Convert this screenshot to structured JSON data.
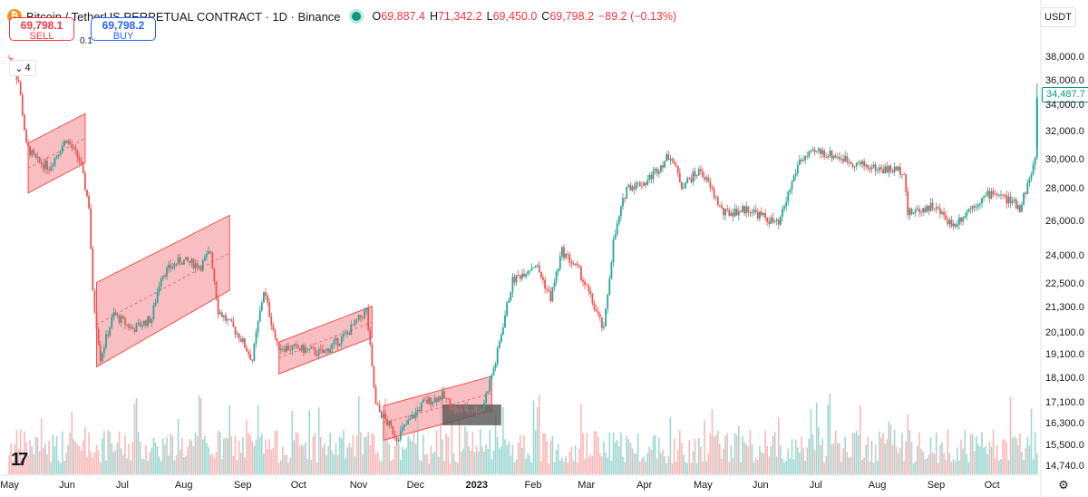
{
  "symbol": {
    "title": "Bitcoin / TetherUS PERPETUAL CONTRACT · 1D · Binance",
    "icon": "bitcoin-icon",
    "icon_glyph": "₿"
  },
  "ohlc": {
    "o_label": "O",
    "o_value": "69,887.4",
    "h_label": "H",
    "h_value": "71,342.2",
    "l_label": "L",
    "l_value": "69,450.0",
    "c_label": "C",
    "c_value": "69,798.2",
    "change": "−89.2 (−0.13%)"
  },
  "trade": {
    "sell_price": "69,798.1",
    "sell_label": "SELL",
    "quantity": "0.1",
    "buy_price": "69,798.2",
    "buy_label": "BUY"
  },
  "indicators": {
    "collapse_count": "4"
  },
  "currency": "USDT",
  "last_price_tag": "34,487.7",
  "colors": {
    "up": "#26a69a",
    "down": "#ef5350",
    "channel_fill": "#f7a8ac",
    "channel_line": "#ef5350",
    "accent_green": "#089981"
  },
  "chart_data": {
    "type": "candlestick",
    "y_axis_ticks": [
      "38,000.0",
      "36,000.0",
      "34,000.0",
      "32,000.0",
      "30,000.0",
      "28,000.0",
      "26,000.0",
      "24,000.0",
      "22,500.0",
      "21,300.0",
      "20,100.0",
      "19,100.0",
      "18,100.0",
      "17,100.0",
      "16,300.0",
      "15,500.0",
      "14,740.0"
    ],
    "x_axis_ticks": [
      "May",
      "Jun",
      "Jul",
      "Aug",
      "Sep",
      "Oct",
      "Nov",
      "Dec",
      "2023",
      "Feb",
      "Mar",
      "Apr",
      "May",
      "Jun",
      "Jul",
      "Aug",
      "Sep",
      "Oct"
    ],
    "scale": "log",
    "price_series": [
      {
        "date": "2022-05-01",
        "close": 38000
      },
      {
        "date": "2022-05-06",
        "close": 36000
      },
      {
        "date": "2022-05-10",
        "close": 31000
      },
      {
        "date": "2022-05-15",
        "close": 30000
      },
      {
        "date": "2022-05-22",
        "close": 29500
      },
      {
        "date": "2022-05-31",
        "close": 31500
      },
      {
        "date": "2022-06-07",
        "close": 30000
      },
      {
        "date": "2022-06-12",
        "close": 27000
      },
      {
        "date": "2022-06-14",
        "close": 22000
      },
      {
        "date": "2022-06-18",
        "close": 19000
      },
      {
        "date": "2022-06-25",
        "close": 21000
      },
      {
        "date": "2022-07-05",
        "close": 20300
      },
      {
        "date": "2022-07-15",
        "close": 20800
      },
      {
        "date": "2022-07-20",
        "close": 23000
      },
      {
        "date": "2022-07-30",
        "close": 23800
      },
      {
        "date": "2022-08-10",
        "close": 23500
      },
      {
        "date": "2022-08-15",
        "close": 24300
      },
      {
        "date": "2022-08-19",
        "close": 21200
      },
      {
        "date": "2022-08-30",
        "close": 20000
      },
      {
        "date": "2022-09-06",
        "close": 18900
      },
      {
        "date": "2022-09-12",
        "close": 22200
      },
      {
        "date": "2022-09-19",
        "close": 19500
      },
      {
        "date": "2022-09-30",
        "close": 19400
      },
      {
        "date": "2022-10-13",
        "close": 19200
      },
      {
        "date": "2022-10-25",
        "close": 20000
      },
      {
        "date": "2022-11-05",
        "close": 21200
      },
      {
        "date": "2022-11-08",
        "close": 18500
      },
      {
        "date": "2022-11-10",
        "close": 17000
      },
      {
        "date": "2022-11-21",
        "close": 15800
      },
      {
        "date": "2022-12-05",
        "close": 17100
      },
      {
        "date": "2022-12-15",
        "close": 17400
      },
      {
        "date": "2022-12-22",
        "close": 16800
      },
      {
        "date": "2023-01-05",
        "close": 16900
      },
      {
        "date": "2023-01-12",
        "close": 18800
      },
      {
        "date": "2023-01-21",
        "close": 22700
      },
      {
        "date": "2023-02-02",
        "close": 23600
      },
      {
        "date": "2023-02-10",
        "close": 21800
      },
      {
        "date": "2023-02-16",
        "close": 24300
      },
      {
        "date": "2023-02-25",
        "close": 23200
      },
      {
        "date": "2023-03-10",
        "close": 20200
      },
      {
        "date": "2023-03-15",
        "close": 24800
      },
      {
        "date": "2023-03-22",
        "close": 28200
      },
      {
        "date": "2023-04-01",
        "close": 28500
      },
      {
        "date": "2023-04-14",
        "close": 30400
      },
      {
        "date": "2023-04-20",
        "close": 28300
      },
      {
        "date": "2023-04-30",
        "close": 29300
      },
      {
        "date": "2023-05-12",
        "close": 26500
      },
      {
        "date": "2023-05-25",
        "close": 26800
      },
      {
        "date": "2023-06-10",
        "close": 25800
      },
      {
        "date": "2023-06-21",
        "close": 30000
      },
      {
        "date": "2023-07-01",
        "close": 30600
      },
      {
        "date": "2023-07-10",
        "close": 30300
      },
      {
        "date": "2023-07-20",
        "close": 29800
      },
      {
        "date": "2023-08-01",
        "close": 29400
      },
      {
        "date": "2023-08-15",
        "close": 29300
      },
      {
        "date": "2023-08-17",
        "close": 26500
      },
      {
        "date": "2023-08-30",
        "close": 27000
      },
      {
        "date": "2023-09-10",
        "close": 25800
      },
      {
        "date": "2023-09-20",
        "close": 27000
      },
      {
        "date": "2023-10-01",
        "close": 27900
      },
      {
        "date": "2023-10-15",
        "close": 26900
      },
      {
        "date": "2023-10-20",
        "close": 28700
      },
      {
        "date": "2023-10-23",
        "close": 30000
      },
      {
        "date": "2023-10-24",
        "close": 34487.7
      }
    ],
    "overlays": [
      {
        "type": "parallel-channel",
        "start": "2022-05-11",
        "end": "2022-06-10"
      },
      {
        "type": "parallel-channel",
        "start": "2022-06-16",
        "end": "2022-08-25"
      },
      {
        "type": "parallel-channel",
        "start": "2022-09-20",
        "end": "2022-11-08"
      },
      {
        "type": "parallel-channel",
        "start": "2022-11-14",
        "end": "2023-01-10"
      },
      {
        "type": "range-box",
        "start": "2022-12-15",
        "end": "2023-01-15"
      }
    ],
    "volume": "per-day volume histogram along the bottom of the pane",
    "grid": false,
    "last_price": 34487.7
  }
}
